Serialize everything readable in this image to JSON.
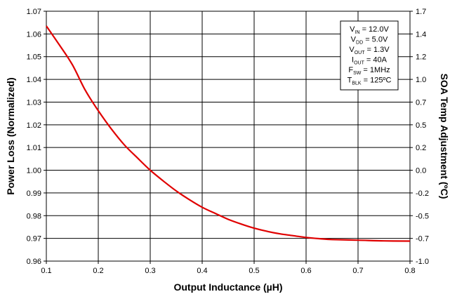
{
  "chart_data": {
    "type": "line",
    "title": "",
    "xlabel": "Output Inductance (µH)",
    "ylabel": "Power Loss (Normalized)",
    "y2label": "SOA Temp Adjustment (ºC)",
    "xlim": [
      0.1,
      0.8
    ],
    "ylim": [
      0.96,
      1.07
    ],
    "y2lim": [
      -1.0,
      1.7
    ],
    "x_ticks": [
      "0.1",
      "0.2",
      "0.3",
      "0.4",
      "0.5",
      "0.6",
      "0.7",
      "0.8"
    ],
    "y_ticks": [
      "0.96",
      "0.97",
      "0.98",
      "0.99",
      "1.00",
      "1.01",
      "1.02",
      "1.03",
      "1.04",
      "1.05",
      "1.06",
      "1.07"
    ],
    "y2_ticks": [
      "-1.0",
      "-0.7",
      "-0.5",
      "-0.2",
      "0.0",
      "0.2",
      "0.5",
      "0.7",
      "1.0",
      "1.2",
      "1.4",
      "1.7"
    ],
    "grid": true,
    "series": [
      {
        "color": "#e00000",
        "x": [
          0.1,
          0.125,
          0.15,
          0.175,
          0.2,
          0.225,
          0.25,
          0.275,
          0.3,
          0.325,
          0.35,
          0.375,
          0.4,
          0.425,
          0.45,
          0.475,
          0.5,
          0.525,
          0.55,
          0.575,
          0.6,
          0.625,
          0.65,
          0.7,
          0.75,
          0.8
        ],
        "y": [
          1.0635,
          1.0552,
          1.0465,
          1.0352,
          1.0262,
          1.0182,
          1.0112,
          1.0055,
          1.0,
          0.9953,
          0.9909,
          0.9871,
          0.9837,
          0.981,
          0.9784,
          0.9763,
          0.9745,
          0.9731,
          0.972,
          0.9712,
          0.9704,
          0.9699,
          0.9695,
          0.9692,
          0.9689,
          0.9688
        ]
      }
    ],
    "legend": {
      "placement": "top-right",
      "lines": [
        {
          "main": "V",
          "sub": "IN",
          "rest": " = 12.0V"
        },
        {
          "main": "V",
          "sub": "DD",
          "rest": " = 5.0V"
        },
        {
          "main": "V",
          "sub": "OUT",
          "rest": " = 1.3V"
        },
        {
          "main": "I",
          "sub": "OUT",
          "rest": " = 40A"
        },
        {
          "main": "F",
          "sub": "SW",
          "rest": " = 1MHz"
        },
        {
          "main": "T",
          "sub": "BLK",
          "rest": " = 125ºC"
        }
      ]
    }
  }
}
